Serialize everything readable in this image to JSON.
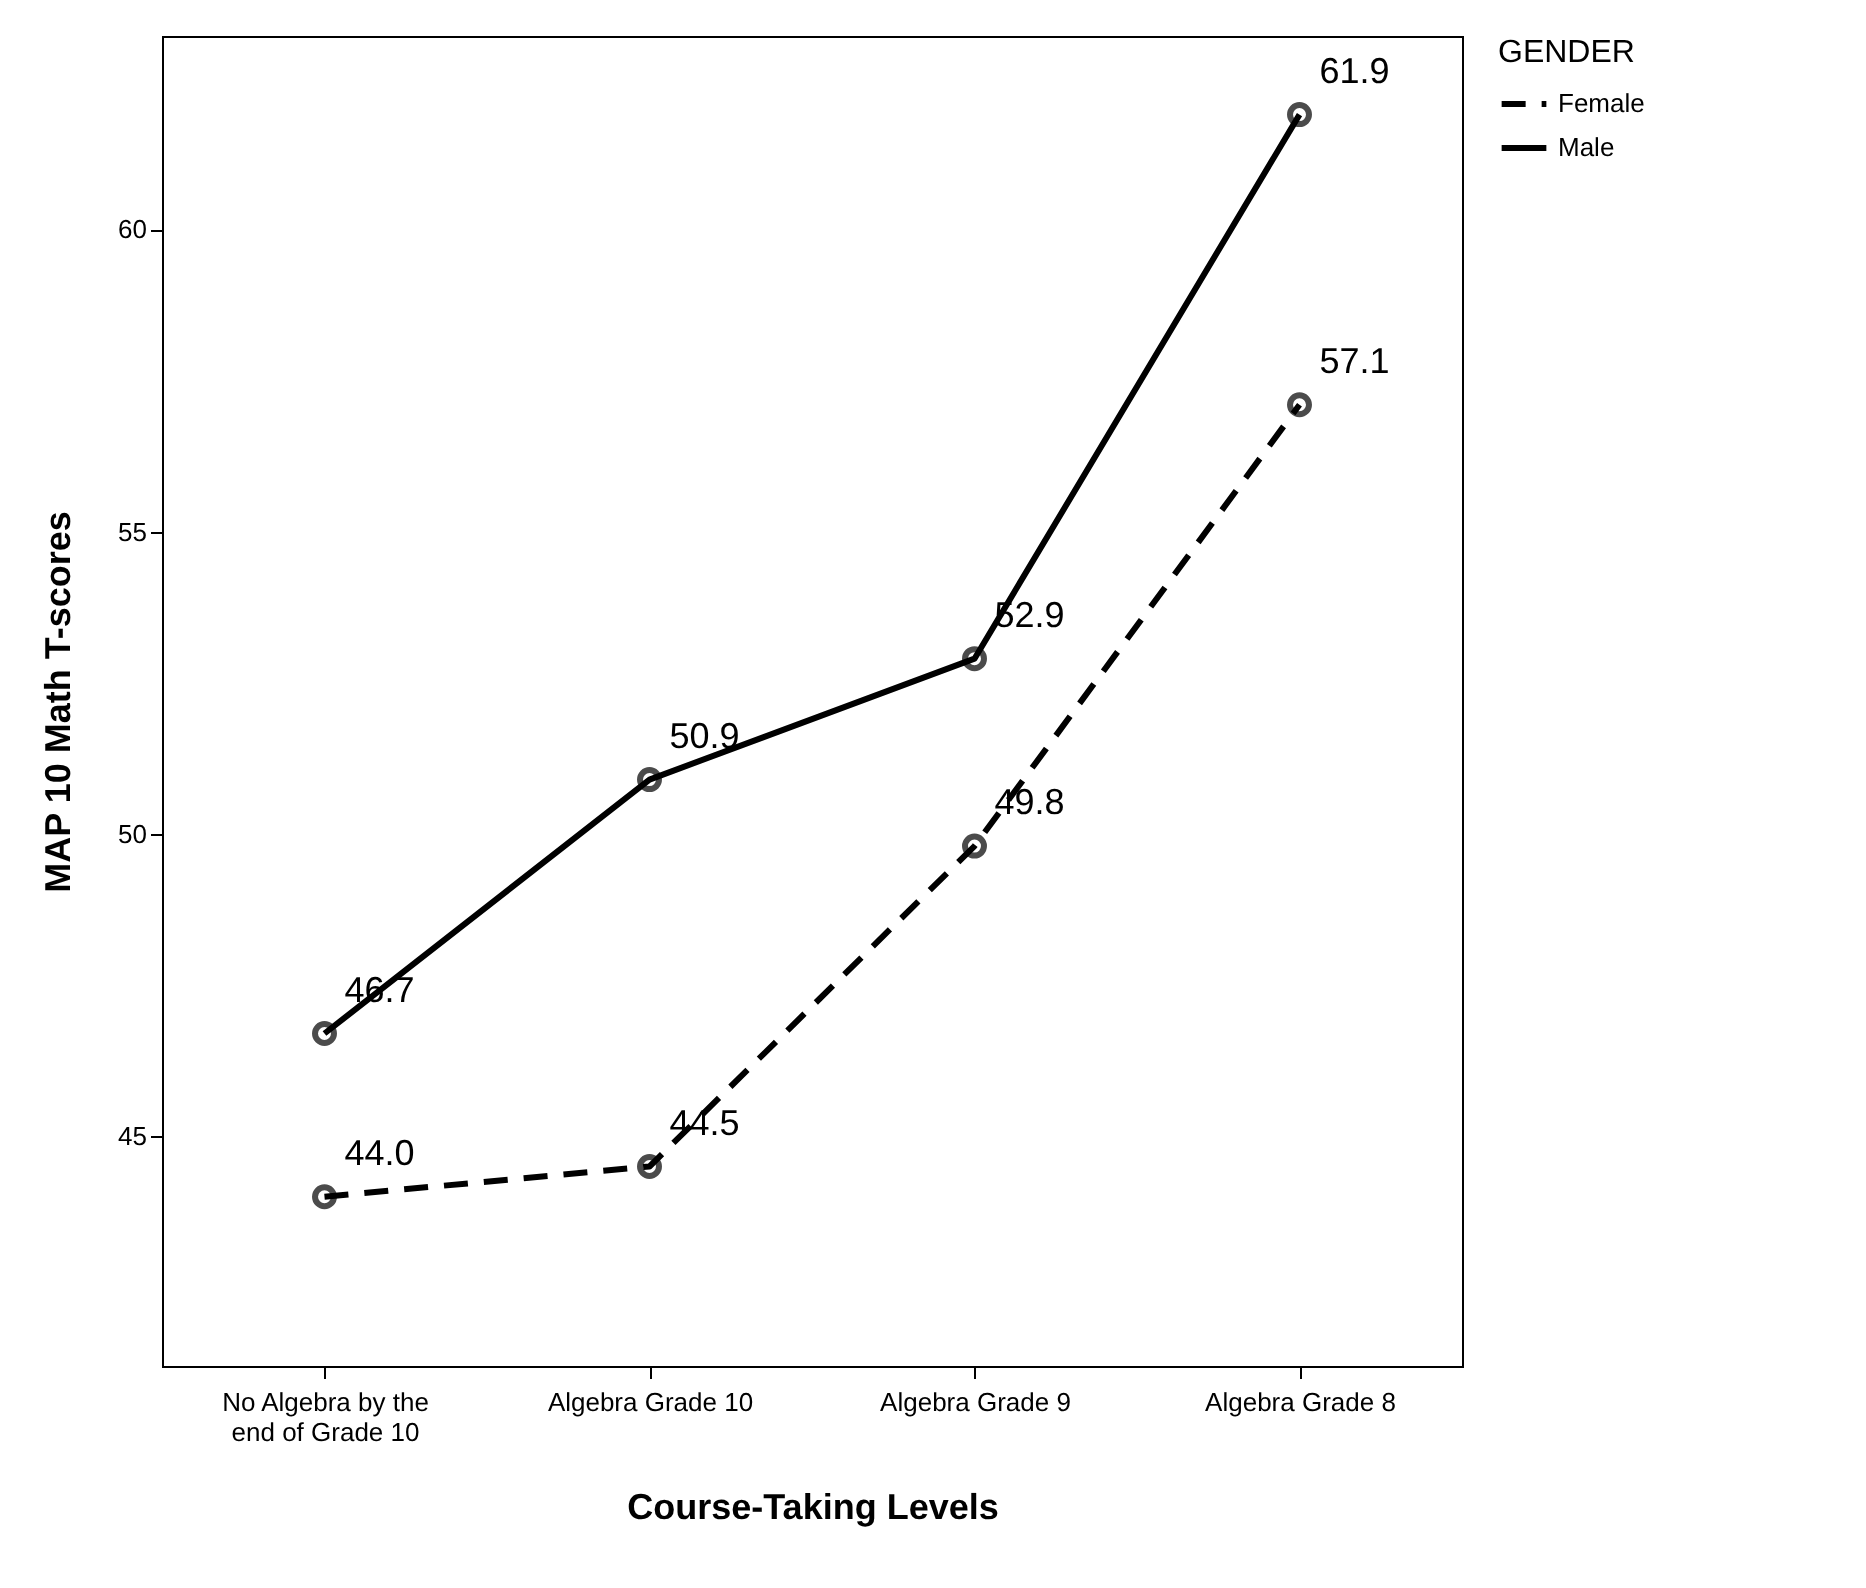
{
  "chart_data": {
    "type": "line",
    "xlabel": "Course-Taking Levels",
    "ylabel": "MAP 10 Math T-scores",
    "legend_title": "GENDER",
    "categories": [
      "No Algebra by the end of Grade 10",
      "Algebra Grade 10",
      "Algebra Grade 9",
      "Algebra Grade 8"
    ],
    "series": [
      {
        "name": "Female",
        "color": "#000000",
        "line_style": "dashed",
        "values": [
          44.0,
          44.5,
          49.8,
          57.1
        ],
        "value_labels": [
          "44.0",
          "44.5",
          "49.8",
          "57.1"
        ]
      },
      {
        "name": "Male",
        "color": "#000000",
        "line_style": "solid",
        "values": [
          46.7,
          50.9,
          52.9,
          61.9
        ],
        "value_labels": [
          "46.7",
          "50.9",
          "52.9",
          "61.9"
        ]
      }
    ],
    "ylim": [
      41.2,
      63.2
    ],
    "yticks": [
      45,
      50,
      55,
      60
    ],
    "grid": false,
    "legend": "top right",
    "marker": "circle"
  }
}
